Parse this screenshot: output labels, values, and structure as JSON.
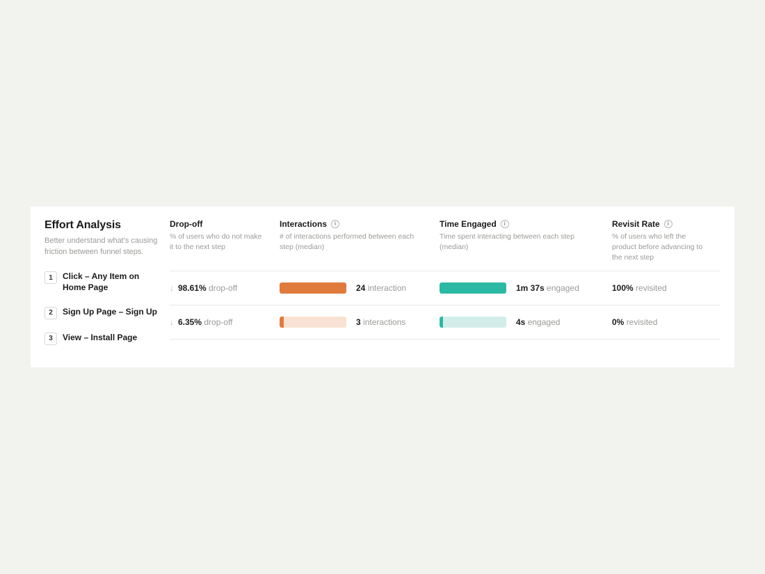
{
  "title": "Effort Analysis",
  "subtitle": "Better understand what's causing friction between funnel steps.",
  "steps": [
    {
      "num": "1",
      "label": "Click – Any Item on Home Page"
    },
    {
      "num": "2",
      "label": "Sign Up Page – Sign Up"
    },
    {
      "num": "3",
      "label": "View – Install Page"
    }
  ],
  "columns": {
    "dropoff": {
      "title": "Drop-off",
      "desc": "% of users who do not make it to the next step"
    },
    "interactions": {
      "title": "Interactions",
      "desc": "# of interactions performed between each step (median)"
    },
    "time_engaged": {
      "title": "Time Engaged",
      "desc": "Time spent interacting between each step (median)"
    },
    "revisit": {
      "title": "Revisit Rate",
      "desc": "% of users who left the product before advancing to the next step"
    }
  },
  "colors": {
    "interactions_fill": "#e07a3d",
    "interactions_bg": "#f9e2d3",
    "time_fill": "#2bb9a4",
    "time_bg": "#d3eeea",
    "page_bg": "#f2f2ef",
    "panel_bg": "#ffffff",
    "divider": "#e8e8e5",
    "text_muted": "#9a9a97",
    "text_strong": "#1a1a1a"
  },
  "rows": [
    {
      "dropoff_pct": "98.61%",
      "dropoff_suffix": "drop-off",
      "interactions_value": "24",
      "interactions_suffix": "interaction",
      "interactions_fill_pct": 100,
      "time_value": "1m 37s",
      "time_suffix": "engaged",
      "time_fill_pct": 100,
      "revisit_value": "100%",
      "revisit_suffix": "revisited"
    },
    {
      "dropoff_pct": "6.35%",
      "dropoff_suffix": "drop-off",
      "interactions_value": "3",
      "interactions_suffix": "interactions",
      "interactions_fill_pct": 6,
      "time_value": "4s",
      "time_suffix": "engaged",
      "time_fill_pct": 5,
      "revisit_value": "0%",
      "revisit_suffix": "revisited"
    }
  ]
}
